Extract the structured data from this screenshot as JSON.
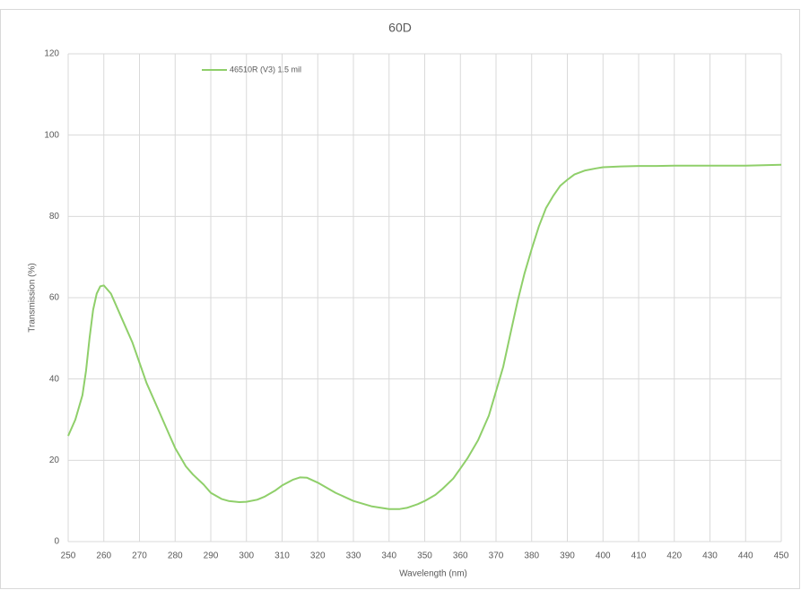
{
  "chart_data": {
    "type": "line",
    "title": "60D",
    "x_label": "Wavelength (nm)",
    "y_label": "Transmission (%)",
    "x": [
      250,
      252,
      254,
      255,
      256,
      257,
      258,
      259,
      260,
      262,
      265,
      268,
      270,
      272,
      275,
      278,
      280,
      283,
      285,
      288,
      290,
      293,
      295,
      298,
      300,
      303,
      305,
      308,
      310,
      313,
      315,
      317,
      320,
      325,
      330,
      335,
      340,
      343,
      345,
      348,
      350,
      353,
      355,
      358,
      360,
      362,
      365,
      368,
      370,
      372,
      374,
      376,
      378,
      380,
      382,
      384,
      386,
      388,
      390,
      392,
      395,
      398,
      400,
      405,
      410,
      415,
      420,
      425,
      430,
      435,
      440,
      445,
      450
    ],
    "series": [
      {
        "name": "46510R (V3) 1.5 mil",
        "color": "#8fcf6a",
        "values": [
          26,
          30,
          36,
          42,
          50,
          57,
          61,
          62.8,
          63,
          61,
          55,
          49,
          44,
          39,
          33,
          27,
          23,
          18.5,
          16.5,
          14,
          12,
          10.5,
          10,
          9.7,
          9.8,
          10.3,
          11,
          12.5,
          13.8,
          15.2,
          15.8,
          15.7,
          14.5,
          12,
          10,
          8.7,
          8,
          8,
          8.3,
          9.2,
          10,
          11.5,
          13,
          15.5,
          18,
          20.5,
          25,
          31,
          37,
          43,
          51,
          59,
          66,
          72,
          77.5,
          82,
          85,
          87.5,
          89,
          90.3,
          91.3,
          91.8,
          92.1,
          92.3,
          92.4,
          92.4,
          92.5,
          92.5,
          92.5,
          92.5,
          92.5,
          92.6,
          92.7
        ]
      }
    ],
    "xlim": [
      250,
      450
    ],
    "xticks": [
      250,
      260,
      270,
      280,
      290,
      300,
      310,
      320,
      330,
      340,
      350,
      360,
      370,
      380,
      390,
      400,
      410,
      420,
      430,
      440,
      450
    ],
    "ylim": [
      0,
      120
    ],
    "yticks": [
      0,
      20,
      40,
      60,
      80,
      100,
      120
    ],
    "grid": true,
    "legend": "top-left"
  }
}
